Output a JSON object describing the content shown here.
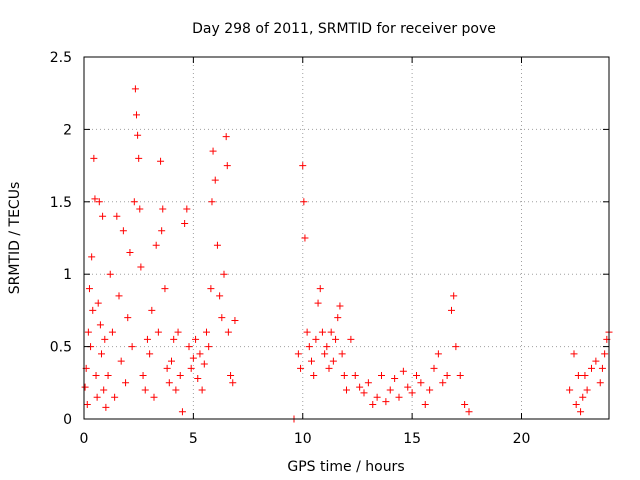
{
  "chart_data": {
    "type": "scatter",
    "title": "Day 298 of 2011, SRMTID for receiver pove",
    "xlabel": "GPS time / hours",
    "ylabel": "SRMTID / TECUs",
    "xlim": [
      0,
      24
    ],
    "ylim": [
      0,
      2.5
    ],
    "xticks": [
      0,
      5,
      10,
      15,
      20
    ],
    "yticks": [
      0,
      0.5,
      1,
      1.5,
      2,
      2.5
    ],
    "xtick_labels": [
      "0",
      "5",
      "10",
      "15",
      "20"
    ],
    "ytick_labels": [
      "0",
      "0.5",
      "1",
      "1.5",
      "2",
      "2.5"
    ],
    "grid": true,
    "marker": "plus",
    "series_color": "#ff0000",
    "series": [
      {
        "values": [
          [
            0.05,
            0.22
          ],
          [
            0.1,
            0.35
          ],
          [
            0.15,
            0.1
          ],
          [
            0.2,
            0.6
          ],
          [
            0.25,
            0.9
          ],
          [
            0.3,
            0.5
          ],
          [
            0.35,
            1.12
          ],
          [
            0.4,
            0.75
          ],
          [
            0.45,
            1.8
          ],
          [
            0.5,
            1.52
          ],
          [
            0.55,
            0.3
          ],
          [
            0.6,
            0.15
          ],
          [
            0.65,
            0.8
          ],
          [
            0.7,
            1.5
          ],
          [
            0.75,
            0.65
          ],
          [
            0.8,
            0.45
          ],
          [
            0.85,
            1.4
          ],
          [
            0.9,
            0.2
          ],
          [
            0.95,
            0.55
          ],
          [
            1.0,
            0.08
          ],
          [
            1.1,
            0.3
          ],
          [
            1.2,
            1.0
          ],
          [
            1.3,
            0.6
          ],
          [
            1.4,
            0.15
          ],
          [
            1.5,
            1.4
          ],
          [
            1.6,
            0.85
          ],
          [
            1.7,
            0.4
          ],
          [
            1.8,
            1.3
          ],
          [
            1.9,
            0.25
          ],
          [
            2.0,
            0.7
          ],
          [
            2.1,
            1.15
          ],
          [
            2.2,
            0.5
          ],
          [
            2.3,
            1.5
          ],
          [
            2.35,
            2.28
          ],
          [
            2.4,
            2.1
          ],
          [
            2.45,
            1.96
          ],
          [
            2.5,
            1.8
          ],
          [
            2.55,
            1.45
          ],
          [
            2.6,
            1.05
          ],
          [
            2.7,
            0.3
          ],
          [
            2.8,
            0.2
          ],
          [
            2.9,
            0.55
          ],
          [
            3.0,
            0.45
          ],
          [
            3.1,
            0.75
          ],
          [
            3.2,
            0.15
          ],
          [
            3.3,
            1.2
          ],
          [
            3.4,
            0.6
          ],
          [
            3.5,
            1.78
          ],
          [
            3.55,
            1.3
          ],
          [
            3.6,
            1.45
          ],
          [
            3.7,
            0.9
          ],
          [
            3.8,
            0.35
          ],
          [
            3.9,
            0.25
          ],
          [
            4.0,
            0.4
          ],
          [
            4.1,
            0.55
          ],
          [
            4.2,
            0.2
          ],
          [
            4.3,
            0.6
          ],
          [
            4.4,
            0.3
          ],
          [
            4.5,
            0.05
          ],
          [
            4.6,
            1.35
          ],
          [
            4.7,
            1.45
          ],
          [
            4.8,
            0.5
          ],
          [
            4.9,
            0.35
          ],
          [
            5.0,
            0.42
          ],
          [
            5.1,
            0.55
          ],
          [
            5.2,
            0.28
          ],
          [
            5.3,
            0.45
          ],
          [
            5.4,
            0.2
          ],
          [
            5.5,
            0.38
          ],
          [
            5.6,
            0.6
          ],
          [
            5.7,
            0.5
          ],
          [
            5.8,
            0.9
          ],
          [
            5.85,
            1.5
          ],
          [
            5.9,
            1.85
          ],
          [
            6.0,
            1.65
          ],
          [
            6.1,
            1.2
          ],
          [
            6.2,
            0.85
          ],
          [
            6.3,
            0.7
          ],
          [
            6.4,
            1.0
          ],
          [
            6.5,
            1.95
          ],
          [
            6.55,
            1.75
          ],
          [
            6.6,
            0.6
          ],
          [
            6.7,
            0.3
          ],
          [
            6.8,
            0.25
          ],
          [
            6.9,
            0.68
          ],
          [
            9.6,
            0.0
          ],
          [
            9.8,
            0.45
          ],
          [
            9.9,
            0.35
          ],
          [
            10.0,
            1.75
          ],
          [
            10.05,
            1.5
          ],
          [
            10.1,
            1.25
          ],
          [
            10.2,
            0.6
          ],
          [
            10.3,
            0.5
          ],
          [
            10.4,
            0.4
          ],
          [
            10.5,
            0.3
          ],
          [
            10.6,
            0.55
          ],
          [
            10.7,
            0.8
          ],
          [
            10.8,
            0.9
          ],
          [
            10.9,
            0.6
          ],
          [
            11.0,
            0.45
          ],
          [
            11.1,
            0.5
          ],
          [
            11.2,
            0.35
          ],
          [
            11.3,
            0.6
          ],
          [
            11.4,
            0.4
          ],
          [
            11.5,
            0.55
          ],
          [
            11.6,
            0.7
          ],
          [
            11.7,
            0.78
          ],
          [
            11.8,
            0.45
          ],
          [
            11.9,
            0.3
          ],
          [
            12.0,
            0.2
          ],
          [
            12.2,
            0.55
          ],
          [
            12.4,
            0.3
          ],
          [
            12.6,
            0.22
          ],
          [
            12.8,
            0.18
          ],
          [
            13.0,
            0.25
          ],
          [
            13.2,
            0.1
          ],
          [
            13.4,
            0.15
          ],
          [
            13.6,
            0.3
          ],
          [
            13.8,
            0.12
          ],
          [
            14.0,
            0.2
          ],
          [
            14.2,
            0.28
          ],
          [
            14.4,
            0.15
          ],
          [
            14.6,
            0.33
          ],
          [
            14.8,
            0.22
          ],
          [
            15.0,
            0.18
          ],
          [
            15.2,
            0.3
          ],
          [
            15.4,
            0.25
          ],
          [
            15.6,
            0.1
          ],
          [
            15.8,
            0.2
          ],
          [
            16.0,
            0.35
          ],
          [
            16.2,
            0.45
          ],
          [
            16.4,
            0.25
          ],
          [
            16.6,
            0.3
          ],
          [
            16.8,
            0.75
          ],
          [
            16.9,
            0.85
          ],
          [
            17.0,
            0.5
          ],
          [
            17.2,
            0.3
          ],
          [
            17.4,
            0.1
          ],
          [
            17.6,
            0.05
          ],
          [
            22.2,
            0.2
          ],
          [
            22.4,
            0.45
          ],
          [
            22.5,
            0.1
          ],
          [
            22.6,
            0.3
          ],
          [
            22.7,
            0.05
          ],
          [
            22.8,
            0.15
          ],
          [
            22.9,
            0.3
          ],
          [
            23.0,
            0.2
          ],
          [
            23.2,
            0.35
          ],
          [
            23.4,
            0.4
          ],
          [
            23.6,
            0.25
          ],
          [
            23.7,
            0.35
          ],
          [
            23.8,
            0.45
          ],
          [
            23.9,
            0.55
          ],
          [
            24.0,
            0.6
          ]
        ]
      }
    ]
  }
}
